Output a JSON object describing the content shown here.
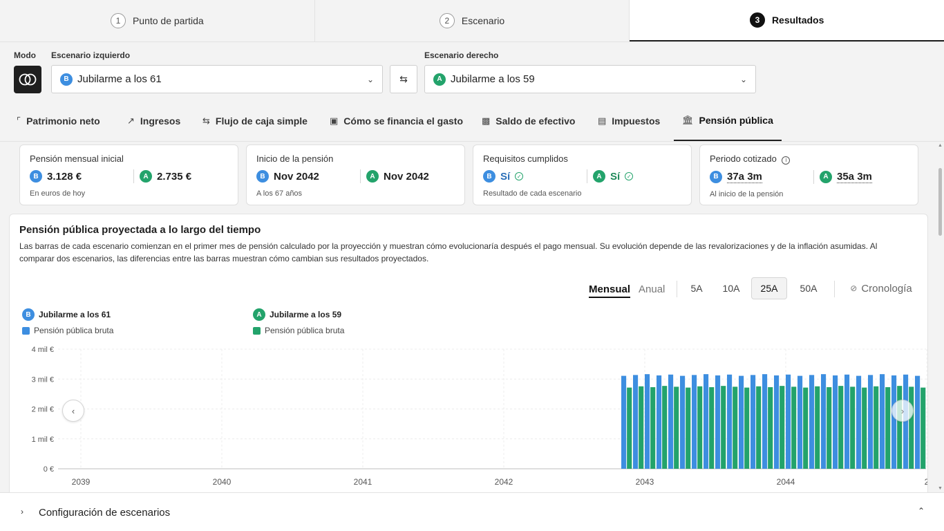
{
  "steps": [
    {
      "num": "1",
      "label": "Punto de partida"
    },
    {
      "num": "2",
      "label": "Escenario"
    },
    {
      "num": "3",
      "label": "Resultados"
    }
  ],
  "scenario": {
    "mode_label": "Modo",
    "left_label": "Escenario izquierdo",
    "right_label": "Escenario derecho",
    "left": {
      "badge": "B",
      "name": "Jubilarme a los 61"
    },
    "right": {
      "badge": "A",
      "name": "Jubilarme a los 59"
    }
  },
  "tabs": [
    {
      "icon": "line-chart-icon",
      "label": "Patrimonio neto"
    },
    {
      "icon": "trending-up-icon",
      "label": "Ingresos"
    },
    {
      "icon": "swap-arrows-icon",
      "label": "Flujo de caja simple"
    },
    {
      "icon": "wallet-icon",
      "label": "Cómo se financia el gasto"
    },
    {
      "icon": "cash-icon",
      "label": "Saldo de efectivo"
    },
    {
      "icon": "receipt-icon",
      "label": "Impuestos"
    },
    {
      "icon": "bank-icon",
      "label": "Pensión pública"
    }
  ],
  "cards": [
    {
      "title": "Pensión mensual inicial",
      "b": "3.128 €",
      "a": "2.735 €",
      "sub": "En euros de hoy"
    },
    {
      "title": "Inicio de la pensión",
      "b": "Nov 2042",
      "a": "Nov 2042",
      "sub": "A los 67 años"
    },
    {
      "title": "Requisitos cumplidos",
      "b": "Sí",
      "a": "Sí",
      "sub": "Resultado de cada escenario"
    },
    {
      "title": "Periodo cotizado",
      "b": "37a 3m",
      "a": "35a 3m",
      "sub": "Al inicio de la pensión"
    }
  ],
  "panel": {
    "title": "Pensión pública proyectada a lo largo del tiempo",
    "desc": "Las barras de cada escenario comienzan en el primer mes de pensión calculado por la proyección y muestran cómo evolucionaría después el pago mensual. Su evolución depende de las revalorizaciones y de la inflación asumidas. Al comparar dos escenarios, las diferencias entre las barras muestran cómo cambian sus resultados proyectados.",
    "freq": [
      "Mensual",
      "Anual"
    ],
    "ranges": [
      "5A",
      "10A",
      "25A",
      "50A"
    ],
    "timeline": "Cronología"
  },
  "legend": [
    {
      "badge": "B",
      "scenario": "Jubilarme a los 61",
      "series": "Pensión pública bruta"
    },
    {
      "badge": "A",
      "scenario": "Jubilarme a los 59",
      "series": "Pensión pública bruta"
    }
  ],
  "colors": {
    "b": "#3d8ee0",
    "a": "#23a36b"
  },
  "chart_data": {
    "type": "bar",
    "x_ticks": [
      "2039",
      "2040",
      "2041",
      "2042",
      "2043",
      "2044",
      "2"
    ],
    "y_ticks": [
      "0 €",
      "1 mil €",
      "2 mil €",
      "3 mil €",
      "4 mil €"
    ],
    "ylim": [
      0,
      4000
    ],
    "start": "Nov 2042",
    "series": [
      {
        "name": "Jubilarme a los 61",
        "value": 3128,
        "color": "#3d8ee0"
      },
      {
        "name": "Jubilarme a los 59",
        "value": 2735,
        "color": "#23a36b"
      }
    ]
  },
  "footer": {
    "title": "Configuración de escenarios"
  }
}
